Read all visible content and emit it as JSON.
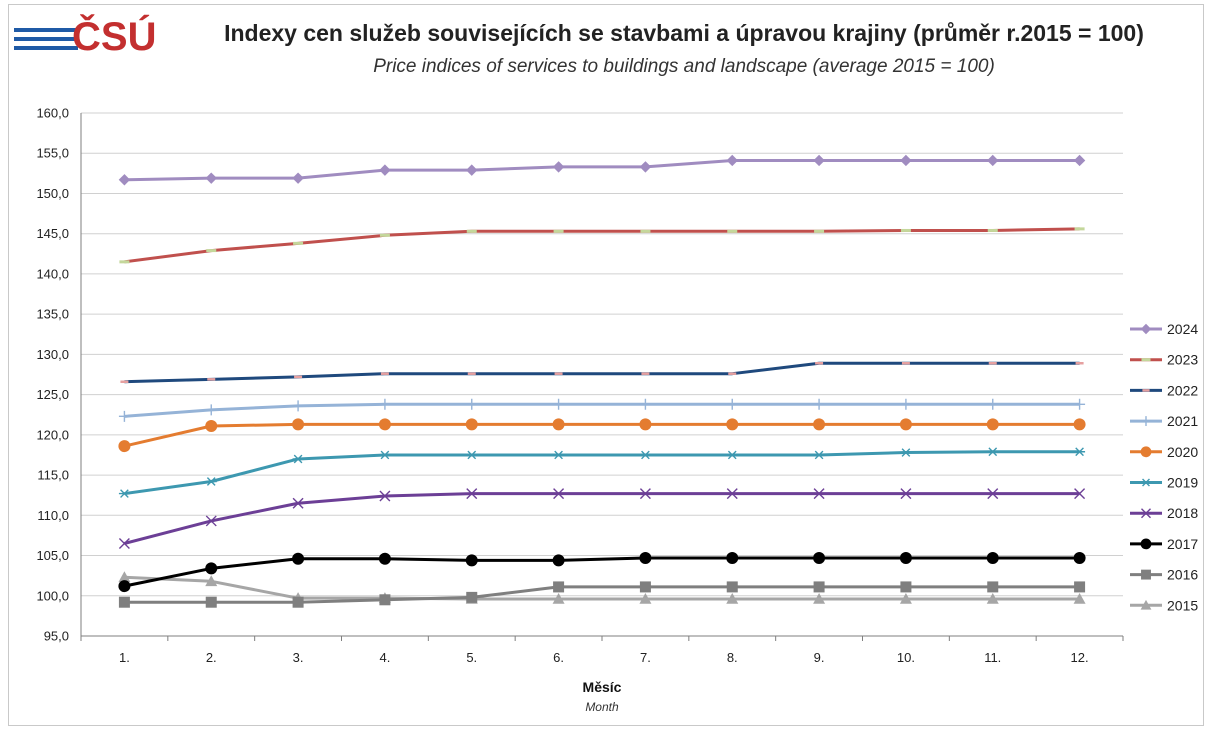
{
  "logo": {
    "text": "ČSÚ"
  },
  "chart_data": {
    "type": "line",
    "title": "Indexy cen služeb souvisejících se stavbami a úpravou krajiny (průměr r.2015 = 100)",
    "subtitle": "Price indices of services to buildings and landscape (average 2015 = 100)",
    "xlabel": "Měsíc",
    "xlabel_en": "Month",
    "ylabel": "",
    "categories": [
      "1.",
      "2.",
      "3.",
      "4.",
      "5.",
      "6.",
      "7.",
      "8.",
      "9.",
      "10.",
      "11.",
      "12."
    ],
    "ylim": [
      95,
      160
    ],
    "yticks": [
      "95,0",
      "100,0",
      "105,0",
      "110,0",
      "115,0",
      "120,0",
      "125,0",
      "130,0",
      "135,0",
      "140,0",
      "145,0",
      "150,0",
      "155,0",
      "160,0"
    ],
    "grid": true,
    "legend_position": "right",
    "series": [
      {
        "name": "2024",
        "color": "#a08cc0",
        "marker": "diamond",
        "values": [
          151.7,
          151.9,
          151.9,
          152.9,
          152.9,
          153.3,
          153.3,
          154.1,
          154.1,
          154.1,
          154.1,
          154.1
        ]
      },
      {
        "name": "2023",
        "color": "#c0504d",
        "marker": "dash-green",
        "values": [
          141.5,
          142.9,
          143.8,
          144.8,
          145.3,
          145.3,
          145.3,
          145.3,
          145.3,
          145.4,
          145.4,
          145.6
        ]
      },
      {
        "name": "2022",
        "color": "#1f497d",
        "marker": "dash-pink",
        "values": [
          126.6,
          126.9,
          127.2,
          127.6,
          127.6,
          127.6,
          127.6,
          127.6,
          128.9,
          128.9,
          128.9,
          128.9
        ]
      },
      {
        "name": "2021",
        "color": "#95b3d7",
        "marker": "plus",
        "values": [
          122.3,
          123.1,
          123.6,
          123.8,
          123.8,
          123.8,
          123.8,
          123.8,
          123.8,
          123.8,
          123.8,
          123.8
        ]
      },
      {
        "name": "2020",
        "color": "#e47c30",
        "marker": "circle",
        "values": [
          118.6,
          121.1,
          121.3,
          121.3,
          121.3,
          121.3,
          121.3,
          121.3,
          121.3,
          121.3,
          121.3,
          121.3
        ]
      },
      {
        "name": "2019",
        "color": "#3d98b0",
        "marker": "star",
        "values": [
          112.7,
          114.2,
          117.0,
          117.5,
          117.5,
          117.5,
          117.5,
          117.5,
          117.5,
          117.8,
          117.9,
          117.9
        ]
      },
      {
        "name": "2018",
        "color": "#6c3f96",
        "marker": "x",
        "values": [
          106.5,
          109.3,
          111.5,
          112.4,
          112.7,
          112.7,
          112.7,
          112.7,
          112.7,
          112.7,
          112.7,
          112.7
        ]
      },
      {
        "name": "2017",
        "color": "#000000",
        "marker": "circle",
        "values": [
          101.2,
          103.4,
          104.6,
          104.6,
          104.4,
          104.4,
          104.7,
          104.7,
          104.7,
          104.7,
          104.7,
          104.7
        ]
      },
      {
        "name": "2016",
        "color": "#7f7f7f",
        "marker": "square",
        "values": [
          99.2,
          99.2,
          99.2,
          99.5,
          99.8,
          101.1,
          101.1,
          101.1,
          101.1,
          101.1,
          101.1,
          101.1
        ]
      },
      {
        "name": "2015",
        "color": "#a6a6a6",
        "marker": "triangle",
        "values": [
          102.3,
          101.8,
          99.7,
          99.7,
          99.6,
          99.6,
          99.6,
          99.6,
          99.6,
          99.6,
          99.6,
          99.6
        ]
      }
    ]
  }
}
